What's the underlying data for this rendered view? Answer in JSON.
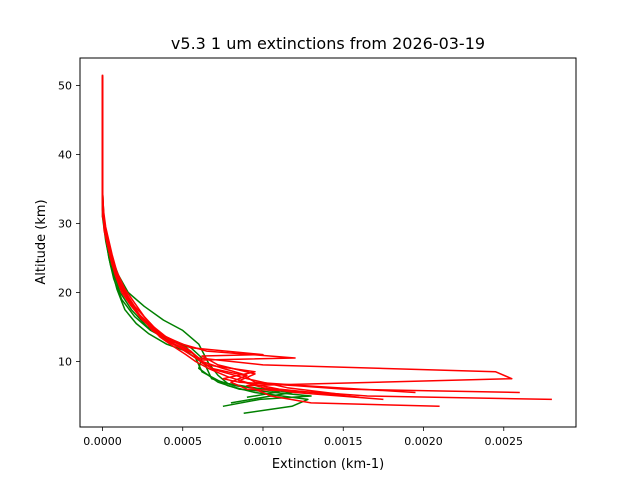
{
  "chart_data": {
    "type": "line",
    "title": "v5.3 1 um extinctions from 2026-03-19",
    "xlabel": "Extinction (km-1)",
    "ylabel": "Altitude (km)",
    "xlim": [
      -0.00014,
      0.00295
    ],
    "ylim": [
      0.5,
      54
    ],
    "xticks": [
      0.0,
      0.0005,
      0.001,
      0.0015,
      0.002,
      0.0025
    ],
    "xtick_labels": [
      "0.0000",
      "0.0005",
      "0.0010",
      "0.0015",
      "0.0020",
      "0.0025"
    ],
    "yticks": [
      10,
      20,
      30,
      40,
      50
    ],
    "ytick_labels": [
      "10",
      "20",
      "30",
      "40",
      "50"
    ],
    "grid": false,
    "colors": {
      "green": "#008000",
      "red": "#ff0000"
    },
    "series": [
      {
        "color": "green",
        "points": [
          [
            0.00088,
            2.5
          ],
          [
            0.00118,
            3.5
          ],
          [
            0.00128,
            4.5
          ],
          [
            0.00095,
            5.5
          ],
          [
            0.00078,
            6.5
          ],
          [
            0.00062,
            8.5
          ],
          [
            0.00057,
            11
          ],
          [
            0.0005,
            12.5
          ],
          [
            0.00038,
            13.5
          ],
          [
            0.00028,
            15.0
          ],
          [
            0.00018,
            17.5
          ],
          [
            0.00011,
            20.0
          ],
          [
            6e-05,
            23.5
          ],
          [
            3e-05,
            26.5
          ],
          [
            1e-05,
            30
          ],
          [
            0.0,
            35
          ],
          [
            0.0,
            40
          ],
          [
            0.0,
            45
          ],
          [
            0.0,
            50
          ],
          [
            0.0,
            51.5
          ]
        ]
      },
      {
        "color": "green",
        "points": [
          [
            0.00075,
            3.5
          ],
          [
            0.00098,
            4.5
          ],
          [
            0.0013,
            5.0
          ],
          [
            0.00085,
            6.0
          ],
          [
            0.00072,
            7.0
          ],
          [
            0.0006,
            9.0
          ],
          [
            0.00062,
            10.5
          ],
          [
            0.00055,
            12.0
          ],
          [
            0.00042,
            13.0
          ],
          [
            0.0003,
            14.5
          ],
          [
            0.0002,
            16.5
          ],
          [
            0.00012,
            19.0
          ],
          [
            7e-05,
            22.0
          ],
          [
            4e-05,
            25.0
          ],
          [
            2e-05,
            28.0
          ],
          [
            0.0,
            32
          ],
          [
            0.0,
            40
          ],
          [
            0.0,
            50
          ],
          [
            0.0,
            51
          ]
        ]
      },
      {
        "color": "green",
        "points": [
          [
            0.0008,
            4.0
          ],
          [
            0.00105,
            5.0
          ],
          [
            0.00118,
            5.5
          ],
          [
            0.00082,
            6.5
          ],
          [
            0.00068,
            7.5
          ],
          [
            0.00064,
            9.5
          ],
          [
            0.00058,
            10.5
          ],
          [
            0.00052,
            11.5
          ],
          [
            0.0004,
            12.5
          ],
          [
            0.00029,
            14.0
          ],
          [
            0.00021,
            15.5
          ],
          [
            0.00014,
            17.5
          ],
          [
            9e-05,
            20.5
          ],
          [
            5e-05,
            24.0
          ],
          [
            2e-05,
            27.5
          ],
          [
            0.0,
            31
          ],
          [
            0.0,
            40
          ],
          [
            0.0,
            50
          ],
          [
            0.0,
            51.2
          ]
        ]
      },
      {
        "color": "green",
        "points": [
          [
            0.0009,
            4.8
          ],
          [
            0.0011,
            5.6
          ],
          [
            0.00078,
            6.8
          ],
          [
            0.00072,
            8.0
          ],
          [
            0.00066,
            9.8
          ],
          [
            0.0006,
            12.5
          ],
          [
            0.0005,
            14.5
          ],
          [
            0.00038,
            16.0
          ],
          [
            0.00026,
            18.0
          ],
          [
            0.00016,
            20.0
          ],
          [
            0.0001,
            22.5
          ],
          [
            5e-05,
            25.5
          ],
          [
            2e-05,
            28.5
          ],
          [
            0.0,
            33
          ],
          [
            0.0,
            42
          ],
          [
            0.0,
            51
          ]
        ]
      },
      {
        "color": "red",
        "points": [
          [
            0.0028,
            4.5
          ],
          [
            0.00165,
            5.0
          ],
          [
            0.00135,
            5.5
          ],
          [
            0.0009,
            6.0
          ],
          [
            0.0008,
            7.0
          ],
          [
            0.0009,
            8.0
          ],
          [
            0.00075,
            9.0
          ],
          [
            0.00062,
            10.0
          ],
          [
            0.00055,
            11.5
          ],
          [
            0.00045,
            12.5
          ],
          [
            0.00036,
            14.0
          ],
          [
            0.00028,
            16.0
          ],
          [
            0.0002,
            18.0
          ],
          [
            0.00013,
            20.5
          ],
          [
            7e-05,
            23.5
          ],
          [
            4e-05,
            26.0
          ],
          [
            2e-05,
            28.0
          ],
          [
            1e-05,
            30
          ],
          [
            0.0,
            35
          ],
          [
            0.0,
            40
          ],
          [
            0.0,
            45
          ],
          [
            0.0,
            50
          ],
          [
            0.0,
            51.5
          ]
        ]
      },
      {
        "color": "red",
        "points": [
          [
            0.0026,
            5.5
          ],
          [
            0.0015,
            6.0
          ],
          [
            0.0012,
            6.5
          ],
          [
            0.00085,
            7.0
          ],
          [
            0.00075,
            7.5
          ],
          [
            0.00095,
            8.5
          ],
          [
            0.00065,
            9.5
          ],
          [
            0.00058,
            10.5
          ],
          [
            0.00048,
            12.0
          ],
          [
            0.0004,
            13.0
          ],
          [
            0.00031,
            14.5
          ],
          [
            0.00024,
            16.5
          ],
          [
            0.00017,
            18.5
          ],
          [
            0.00011,
            21.0
          ],
          [
            6e-05,
            24.0
          ],
          [
            3e-05,
            27.0
          ],
          [
            1e-05,
            29
          ],
          [
            0.0,
            34
          ],
          [
            0.0,
            42
          ],
          [
            0.0,
            51
          ]
        ]
      },
      {
        "color": "red",
        "points": [
          [
            0.0021,
            3.5
          ],
          [
            0.0013,
            4.0
          ],
          [
            0.00105,
            5.0
          ],
          [
            0.0009,
            6.5
          ],
          [
            0.00255,
            7.5
          ],
          [
            0.00245,
            8.5
          ],
          [
            0.001,
            9.5
          ],
          [
            0.0006,
            10.5
          ],
          [
            0.00052,
            12.0
          ],
          [
            0.00043,
            13.0
          ],
          [
            0.00033,
            14.5
          ],
          [
            0.00025,
            16.0
          ],
          [
            0.00018,
            18.0
          ],
          [
            0.00012,
            20.0
          ],
          [
            8e-05,
            22.5
          ],
          [
            5e-05,
            25.0
          ],
          [
            3e-05,
            27.5
          ],
          [
            1e-05,
            30
          ],
          [
            0.0,
            35
          ],
          [
            0.0,
            43
          ],
          [
            0.0,
            51.2
          ]
        ]
      },
      {
        "color": "red",
        "points": [
          [
            0.00195,
            5.5
          ],
          [
            0.00125,
            6.5
          ],
          [
            0.00095,
            7.0
          ],
          [
            0.00088,
            8.0
          ],
          [
            0.00068,
            9.0
          ],
          [
            0.0006,
            10.2
          ],
          [
            0.0012,
            10.5
          ],
          [
            0.00065,
            11.5
          ],
          [
            0.0005,
            12.5
          ],
          [
            0.0004,
            13.5
          ],
          [
            0.00032,
            15.0
          ],
          [
            0.00026,
            16.5
          ],
          [
            0.0002,
            18.5
          ],
          [
            0.00014,
            20.5
          ],
          [
            9e-05,
            23.0
          ],
          [
            6e-05,
            25.5
          ],
          [
            4e-05,
            27.5
          ],
          [
            2e-05,
            29.5
          ],
          [
            0.0,
            33
          ],
          [
            0.0,
            40
          ],
          [
            0.0,
            50
          ],
          [
            0.0,
            51.6
          ]
        ]
      },
      {
        "color": "red",
        "points": [
          [
            0.00175,
            4.5
          ],
          [
            0.0012,
            5.5
          ],
          [
            0.001,
            6.2
          ],
          [
            0.00085,
            7.2
          ],
          [
            0.00095,
            8.2
          ],
          [
            0.00072,
            9.5
          ],
          [
            0.00062,
            10.8
          ],
          [
            0.001,
            11.0
          ],
          [
            0.00055,
            12.0
          ],
          [
            0.00045,
            13.0
          ],
          [
            0.00036,
            14.0
          ],
          [
            0.00029,
            15.5
          ],
          [
            0.00022,
            17.0
          ],
          [
            0.00016,
            19.0
          ],
          [
            0.00011,
            21.5
          ],
          [
            7e-05,
            24.0
          ],
          [
            4e-05,
            26.5
          ],
          [
            2e-05,
            28.5
          ],
          [
            0.0,
            32
          ],
          [
            0.0,
            41
          ],
          [
            0.0,
            51
          ]
        ]
      },
      {
        "color": "red",
        "points": [
          [
            0.0016,
            4.8
          ],
          [
            0.0011,
            6.0
          ],
          [
            0.00092,
            6.8
          ],
          [
            0.00078,
            7.8
          ],
          [
            0.00066,
            9.0
          ],
          [
            0.00058,
            10.0
          ],
          [
            0.00052,
            11.0
          ],
          [
            0.00044,
            12.2
          ],
          [
            0.00036,
            13.5
          ],
          [
            0.0003,
            15.0
          ],
          [
            0.00023,
            16.8
          ],
          [
            0.00018,
            18.5
          ],
          [
            0.00013,
            20.0
          ],
          [
            9e-05,
            22.0
          ],
          [
            6e-05,
            24.5
          ],
          [
            3e-05,
            27.0
          ],
          [
            1e-05,
            29.5
          ],
          [
            0.0,
            34
          ],
          [
            0.0,
            44
          ],
          [
            0.0,
            51.4
          ]
        ]
      },
      {
        "color": "red",
        "points": [
          [
            0.0015,
            5.2
          ],
          [
            0.00115,
            6.2
          ],
          [
            0.0009,
            7.5
          ],
          [
            0.0007,
            8.8
          ],
          [
            0.00062,
            9.8
          ],
          [
            0.00056,
            11.2
          ],
          [
            0.00048,
            12.0
          ],
          [
            0.00039,
            13.2
          ],
          [
            0.00031,
            14.8
          ],
          [
            0.00024,
            16.2
          ],
          [
            0.00019,
            18.0
          ],
          [
            0.00015,
            19.8
          ],
          [
            0.0001,
            21.8
          ],
          [
            7e-05,
            23.8
          ],
          [
            5e-05,
            25.8
          ],
          [
            3e-05,
            27.8
          ],
          [
            0.0,
            31
          ],
          [
            0.0,
            38
          ],
          [
            0.0,
            46
          ],
          [
            0.0,
            51.3
          ]
        ]
      }
    ]
  }
}
